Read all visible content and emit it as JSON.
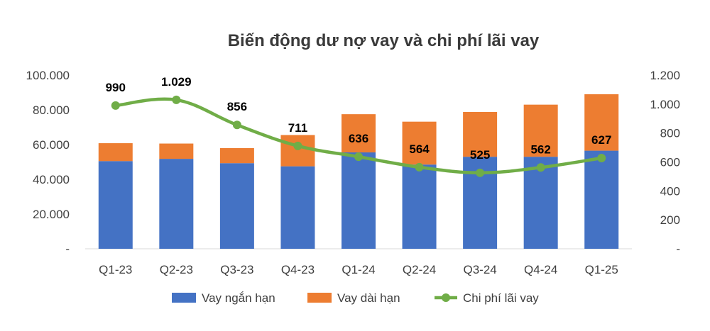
{
  "chart_data": {
    "type": "bar",
    "title": "Biến động dư nợ vay và chi phí lãi vay",
    "categories": [
      "Q1-23",
      "Q2-23",
      "Q3-23",
      "Q4-23",
      "Q1-24",
      "Q2-24",
      "Q3-24",
      "Q4-24",
      "Q1-25"
    ],
    "series": [
      {
        "name": "Vay ngắn hạn",
        "kind": "stacked-bar",
        "axis": "left",
        "color": "#4472C4",
        "values": [
          50500,
          51800,
          49300,
          47500,
          55500,
          48500,
          53000,
          53000,
          56500
        ]
      },
      {
        "name": "Vay dài hạn",
        "kind": "stacked-bar",
        "axis": "left",
        "color": "#ED7D31",
        "values": [
          10300,
          8800,
          8700,
          18000,
          22000,
          24700,
          25800,
          30000,
          32500
        ]
      },
      {
        "name": "Chi phí lãi vay",
        "kind": "line",
        "axis": "right",
        "color": "#70AD47",
        "values": [
          990,
          1029,
          856,
          711,
          636,
          564,
          525,
          562,
          627
        ],
        "labels": [
          "990",
          "1.029",
          "856",
          "711",
          "636",
          "564",
          "525",
          "562",
          "627"
        ]
      }
    ],
    "y_left": {
      "min": 0,
      "max": 100000,
      "ticks": [
        0,
        20000,
        40000,
        60000,
        80000,
        100000
      ],
      "tick_labels": [
        "-",
        "20.000",
        "40.000",
        "60.000",
        "80.000",
        "100.000"
      ]
    },
    "y_right": {
      "min": 0,
      "max": 1200,
      "ticks": [
        0,
        200,
        400,
        600,
        800,
        1000,
        1200
      ],
      "tick_labels": [
        "-",
        "200",
        "400",
        "600",
        "800",
        "1.000",
        "1.200"
      ]
    },
    "grid": false,
    "legend": "bottom-center"
  }
}
